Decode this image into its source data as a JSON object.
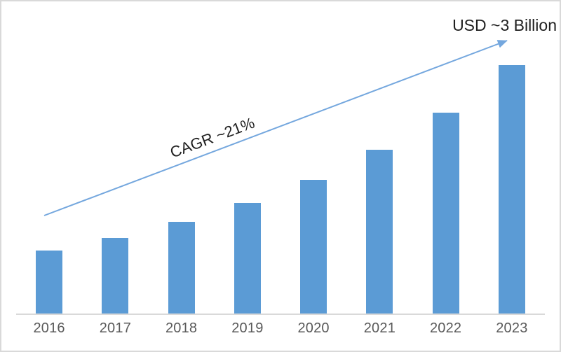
{
  "chart_data": {
    "type": "bar",
    "title": "",
    "xlabel": "",
    "ylabel": "",
    "categories": [
      "2016",
      "2017",
      "2018",
      "2019",
      "2020",
      "2021",
      "2022",
      "2023"
    ],
    "values": [
      0.77,
      0.92,
      1.11,
      1.34,
      1.62,
      1.98,
      2.43,
      3.0
    ],
    "unit": "USD Billion",
    "ylim": [
      0,
      3.4
    ],
    "grid": false,
    "legend": "none",
    "annotations": {
      "cagr": "CAGR ~21%",
      "end_value": "USD ~3 Billion"
    },
    "colors": {
      "bar": "#5B9BD5",
      "trend_arrow": "#74A7DE",
      "axis_line": "#D9D9D9",
      "tick_label": "#595959",
      "annotation_text": "#1F1F1F",
      "frame_border": "#D9D9D9",
      "background": "#FFFFFF"
    }
  }
}
